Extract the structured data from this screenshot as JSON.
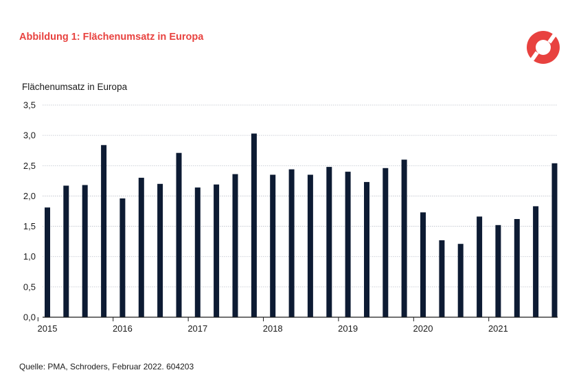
{
  "figure_title": "Abbildung 1: Flächenumsatz in Europa",
  "colors": {
    "accent": "#e8423f",
    "bar": "#0d1b33",
    "grid": "#b9bec8",
    "text": "#1a1a1a"
  },
  "logo_icon": "schroders-ring-logo",
  "source": "Quelle: PMA, Schroders, Februar 2022. 604203",
  "chart_data": {
    "type": "bar",
    "title": "Flächenumsatz in Europa",
    "xlabel": "",
    "ylabel": "",
    "ylim": [
      0,
      3.5
    ],
    "yticks": [
      "0,0",
      "0,5",
      "1,0",
      "1,5",
      "2,0",
      "2,5",
      "3,0",
      "3,5"
    ],
    "grid": true,
    "year_labels": [
      "2015",
      "2016",
      "2017",
      "2018",
      "2019",
      "2020",
      "2021"
    ],
    "year_label_bar_index": [
      0,
      4,
      8,
      12,
      16,
      20,
      24
    ],
    "values": [
      1.81,
      2.17,
      2.18,
      2.84,
      1.96,
      2.3,
      2.2,
      2.71,
      2.14,
      2.19,
      2.36,
      3.03,
      2.35,
      2.44,
      2.35,
      2.48,
      2.4,
      2.23,
      2.46,
      2.6,
      1.73,
      1.27,
      1.21,
      1.66,
      1.52,
      1.62,
      1.83,
      2.54
    ]
  }
}
